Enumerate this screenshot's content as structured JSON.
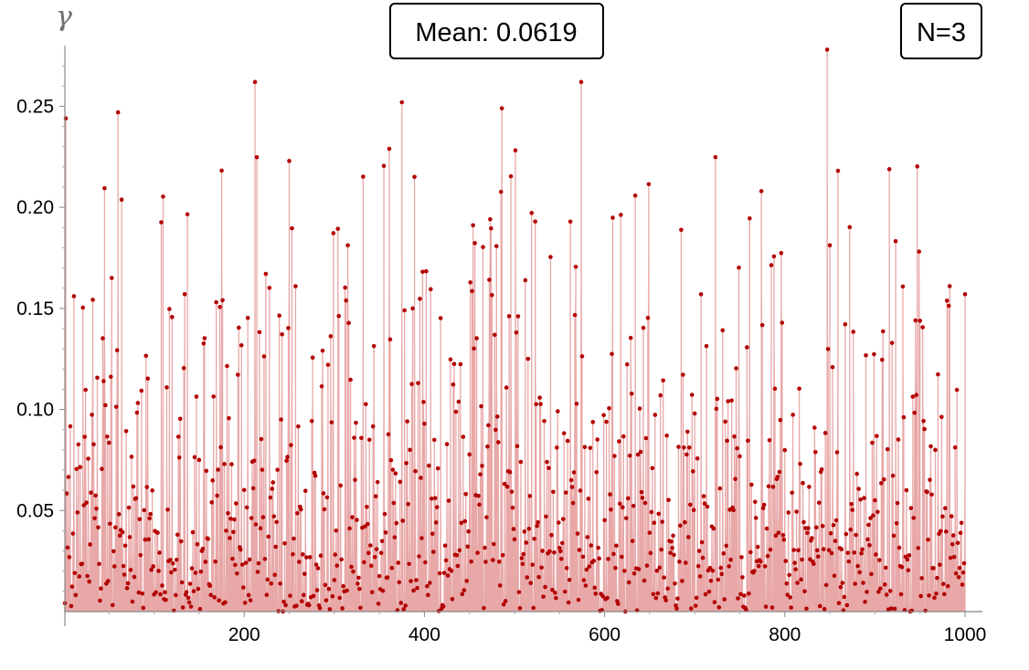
{
  "chart_data": {
    "type": "scatter",
    "style": "stem-with-points",
    "ylabel": "γ",
    "xlabel": "",
    "xlim": [
      1,
      1000
    ],
    "ylim": [
      0,
      0.28
    ],
    "xticks": [
      200,
      400,
      600,
      800,
      1000
    ],
    "xtick_labels": [
      "200",
      "400",
      "600",
      "800",
      "1000"
    ],
    "yticks": [
      0.05,
      0.1,
      0.15,
      0.2,
      0.25
    ],
    "ytick_labels": [
      "0.05",
      "0.10",
      "0.15",
      "0.20",
      "0.25"
    ],
    "grid": false,
    "colors": {
      "stem": "#e8a8a8",
      "fill": "#d9696c",
      "point": "#b30000"
    },
    "annotations": [
      {
        "name": "mean-box",
        "text": "Mean: 0.0619"
      },
      {
        "name": "n-box",
        "text": "N=3"
      }
    ],
    "notable_points": [
      {
        "x": 2,
        "y": 0.244
      },
      {
        "x": 60,
        "y": 0.247
      },
      {
        "x": 212,
        "y": 0.262
      },
      {
        "x": 375,
        "y": 0.252
      },
      {
        "x": 486,
        "y": 0.249
      },
      {
        "x": 574,
        "y": 0.262
      },
      {
        "x": 847,
        "y": 0.278
      },
      {
        "x": 1000,
        "y": 0.157
      }
    ],
    "n_points": 1000,
    "mean": 0.0619
  }
}
